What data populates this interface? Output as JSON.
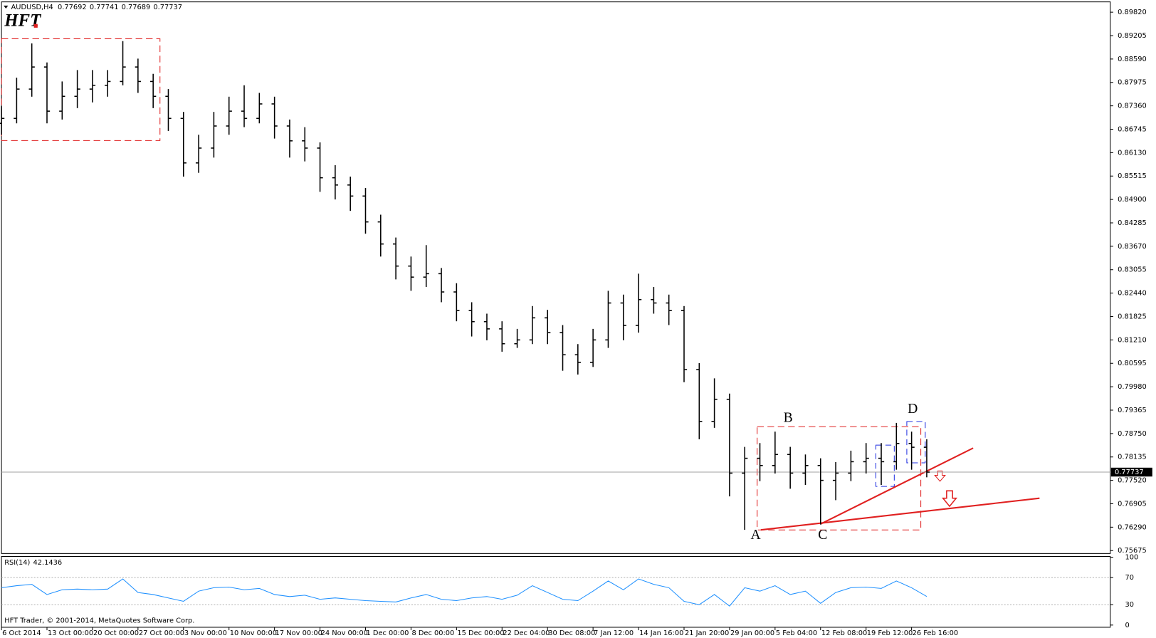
{
  "chart_data": [
    {
      "type": "ohlc",
      "symbol": "AUDUSD,H4",
      "header_ohlc": [
        0.77692,
        0.77741,
        0.77689,
        0.77737
      ],
      "logo": "HFT",
      "color": "#000000",
      "current_price": 0.77737,
      "pattern_labels": [
        "A",
        "B",
        "C",
        "D"
      ],
      "x": [
        0,
        10,
        20,
        30,
        40,
        50,
        60,
        70,
        80,
        90,
        100,
        110,
        120,
        130,
        140,
        150,
        160,
        170,
        180,
        190,
        200,
        210,
        220,
        230,
        240,
        250,
        260,
        270,
        280,
        290,
        300,
        310,
        320,
        330,
        340,
        350,
        360,
        370,
        380,
        390,
        400,
        410,
        420,
        430,
        440,
        450,
        460,
        470,
        480,
        490,
        500,
        510,
        520,
        530,
        540,
        550,
        560,
        570,
        580,
        590,
        600,
        610
      ],
      "open": [
        0.869,
        0.8703,
        0.878,
        0.8838,
        0.8722,
        0.8761,
        0.878,
        0.879,
        0.88,
        0.8838,
        0.88,
        0.8761,
        0.8703,
        0.8586,
        0.8625,
        0.8683,
        0.8722,
        0.8703,
        0.8741,
        0.8683,
        0.8644,
        0.8625,
        0.8547,
        0.8528,
        0.8499,
        0.8431,
        0.8373,
        0.8315,
        0.8286,
        0.8295,
        0.8247,
        0.8198,
        0.8169,
        0.815,
        0.8111,
        0.8121,
        0.8179,
        0.814,
        0.8082,
        0.8062,
        0.8121,
        0.8218,
        0.8159,
        0.8227,
        0.8218,
        0.8198,
        0.8043,
        0.7907,
        0.7965,
        0.7771,
        0.781,
        0.7791,
        0.782,
        0.7771,
        0.7791,
        0.7752,
        0.7771,
        0.7801,
        0.781,
        0.7801,
        0.7849,
        0.7839
      ],
      "high": [
        0.8735,
        0.881,
        0.89,
        0.885,
        0.88,
        0.883,
        0.883,
        0.883,
        0.8906,
        0.886,
        0.882,
        0.878,
        0.872,
        0.866,
        0.872,
        0.876,
        0.879,
        0.877,
        0.876,
        0.87,
        0.868,
        0.864,
        0.858,
        0.855,
        0.852,
        0.845,
        0.839,
        0.834,
        0.837,
        0.831,
        0.827,
        0.822,
        0.819,
        0.817,
        0.815,
        0.821,
        0.82,
        0.816,
        0.811,
        0.815,
        0.825,
        0.824,
        0.8295,
        0.826,
        0.824,
        0.821,
        0.806,
        0.802,
        0.798,
        0.784,
        0.785,
        0.788,
        0.784,
        0.782,
        0.781,
        0.78,
        0.783,
        0.785,
        0.785,
        0.7903,
        0.788,
        0.786
      ],
      "low": [
        0.866,
        0.869,
        0.876,
        0.869,
        0.87,
        0.873,
        0.8745,
        0.876,
        0.879,
        0.877,
        0.873,
        0.867,
        0.855,
        0.856,
        0.86,
        0.866,
        0.868,
        0.869,
        0.865,
        0.86,
        0.859,
        0.851,
        0.849,
        0.846,
        0.84,
        0.834,
        0.828,
        0.825,
        0.826,
        0.822,
        0.817,
        0.813,
        0.812,
        0.809,
        0.81,
        0.811,
        0.811,
        0.804,
        0.803,
        0.805,
        0.81,
        0.812,
        0.814,
        0.819,
        0.816,
        0.801,
        0.786,
        0.789,
        0.771,
        0.7622,
        0.775,
        0.777,
        0.773,
        0.774,
        0.7636,
        0.77,
        0.775,
        0.777,
        0.774,
        0.778,
        0.778,
        0.776
      ],
      "close": [
        0.8703,
        0.878,
        0.8838,
        0.8722,
        0.8761,
        0.878,
        0.879,
        0.88,
        0.8838,
        0.88,
        0.8761,
        0.8703,
        0.8586,
        0.8625,
        0.8683,
        0.8722,
        0.8703,
        0.8741,
        0.8683,
        0.8644,
        0.8625,
        0.8547,
        0.8528,
        0.8499,
        0.8431,
        0.8373,
        0.8315,
        0.8286,
        0.8295,
        0.8247,
        0.8198,
        0.8169,
        0.815,
        0.8111,
        0.8121,
        0.8179,
        0.814,
        0.8082,
        0.8062,
        0.8121,
        0.8218,
        0.8159,
        0.8227,
        0.8218,
        0.8198,
        0.8043,
        0.7907,
        0.7965,
        0.7771,
        0.781,
        0.7791,
        0.782,
        0.7771,
        0.7791,
        0.7752,
        0.7771,
        0.7801,
        0.781,
        0.7801,
        0.7849,
        0.7839,
        0.77737
      ],
      "xlim": [
        0,
        731
      ],
      "xticks": [
        {
          "value": 0,
          "label": "6 Oct 2014"
        },
        {
          "value": 30,
          "label": "13 Oct 00:00"
        },
        {
          "value": 60,
          "label": "20 Oct 00:00"
        },
        {
          "value": 90,
          "label": "27 Oct 00:00"
        },
        {
          "value": 120,
          "label": "3 Nov 00:00"
        },
        {
          "value": 150,
          "label": "10 Nov 00:00"
        },
        {
          "value": 180,
          "label": "17 Nov 00:00"
        },
        {
          "value": 210,
          "label": "24 Nov 00:00"
        },
        {
          "value": 240,
          "label": "1 Dec 00:00"
        },
        {
          "value": 270,
          "label": "8 Dec 00:00"
        },
        {
          "value": 300,
          "label": "15 Dec 00:00"
        },
        {
          "value": 330,
          "label": "22 Dec 04:00"
        },
        {
          "value": 360,
          "label": "30 Dec 08:00"
        },
        {
          "value": 390,
          "label": "7 Jan 12:00"
        },
        {
          "value": 420,
          "label": "14 Jan 16:00"
        },
        {
          "value": 450,
          "label": "21 Jan 20:00"
        },
        {
          "value": 480,
          "label": "29 Jan 00:00"
        },
        {
          "value": 510,
          "label": "5 Feb 04:00"
        },
        {
          "value": 540,
          "label": "12 Feb 08:00"
        },
        {
          "value": 570,
          "label": "19 Feb 12:00"
        },
        {
          "value": 600,
          "label": "26 Feb 16:00"
        }
      ],
      "ylim": [
        0.75598,
        0.90091
      ],
      "yticks": [
        {
          "value": 0.8982,
          "label": "0.89820"
        },
        {
          "value": 0.89205,
          "label": "0.89205"
        },
        {
          "value": 0.8859,
          "label": "0.88590"
        },
        {
          "value": 0.87975,
          "label": "0.87975"
        },
        {
          "value": 0.8736,
          "label": "0.87360"
        },
        {
          "value": 0.86745,
          "label": "0.86745"
        },
        {
          "value": 0.8613,
          "label": "0.86130"
        },
        {
          "value": 0.85515,
          "label": "0.85515"
        },
        {
          "value": 0.849,
          "label": "0.84900"
        },
        {
          "value": 0.84285,
          "label": "0.84285"
        },
        {
          "value": 0.8367,
          "label": "0.83670"
        },
        {
          "value": 0.83055,
          "label": "0.83055"
        },
        {
          "value": 0.8244,
          "label": "0.82440"
        },
        {
          "value": 0.81825,
          "label": "0.81825"
        },
        {
          "value": 0.8121,
          "label": "0.81210"
        },
        {
          "value": 0.80595,
          "label": "0.80595"
        },
        {
          "value": 0.7998,
          "label": "0.79980"
        },
        {
          "value": 0.79365,
          "label": "0.79365"
        },
        {
          "value": 0.7875,
          "label": "0.78750"
        },
        {
          "value": 0.78135,
          "label": "0.78135"
        },
        {
          "value": 0.7752,
          "label": "0.77520"
        },
        {
          "value": 0.76905,
          "label": "0.76905"
        },
        {
          "value": 0.7629,
          "label": "0.76290"
        },
        {
          "value": 0.75675,
          "label": "0.75675"
        }
      ]
    },
    {
      "type": "line",
      "indicator": "RSI(14)",
      "color": "#1e90ff",
      "values": [
        55,
        58,
        60,
        45,
        52,
        53,
        52,
        53,
        68,
        48,
        45,
        40,
        35,
        50,
        55,
        56,
        52,
        54,
        45,
        42,
        44,
        38,
        40,
        38,
        36,
        35,
        34,
        40,
        45,
        38,
        36,
        40,
        42,
        38,
        44,
        58,
        48,
        38,
        36,
        50,
        65,
        52,
        68,
        60,
        55,
        35,
        30,
        45,
        28,
        55,
        50,
        58,
        45,
        50,
        32,
        48,
        55,
        56,
        54,
        65,
        55,
        42.1436
      ],
      "ylim": [
        0,
        100
      ],
      "yticks": [
        0,
        30,
        70,
        100
      ],
      "levels": [
        30,
        70
      ]
    }
  ],
  "copyright": "HFT Trader, © 2001-2014, MetaQuotes Software Corp."
}
